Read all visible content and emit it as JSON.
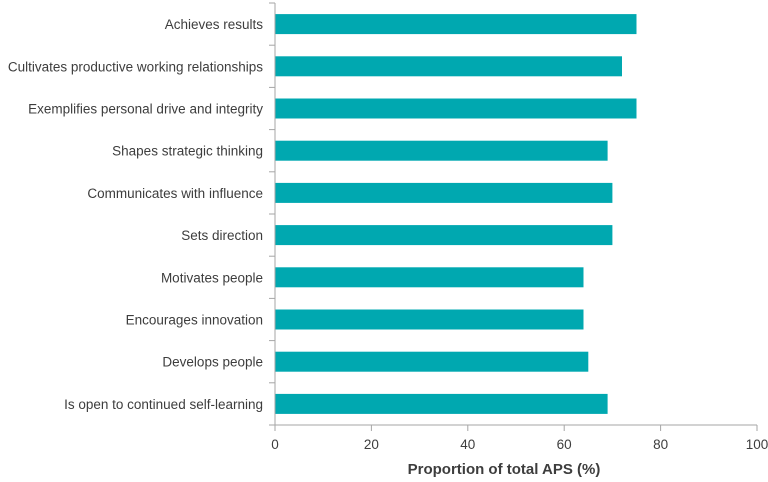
{
  "chart_data": {
    "type": "bar",
    "orientation": "horizontal",
    "title": "",
    "xlabel": "Proportion of total APS (%)",
    "ylabel": "",
    "xlim": [
      0,
      100
    ],
    "xticks": [
      0,
      20,
      40,
      60,
      80,
      100
    ],
    "grid": false,
    "bar_color": "#00a8b0",
    "categories": [
      "Achieves results",
      "Cultivates productive working relationships",
      "Exemplifies personal drive and integrity",
      "Shapes strategic thinking",
      "Communicates with influence",
      "Sets direction",
      "Motivates people",
      "Encourages innovation",
      "Develops people",
      "Is open to continued self-learning"
    ],
    "values": [
      75,
      72,
      75,
      69,
      70,
      70,
      64,
      64,
      65,
      69
    ]
  }
}
